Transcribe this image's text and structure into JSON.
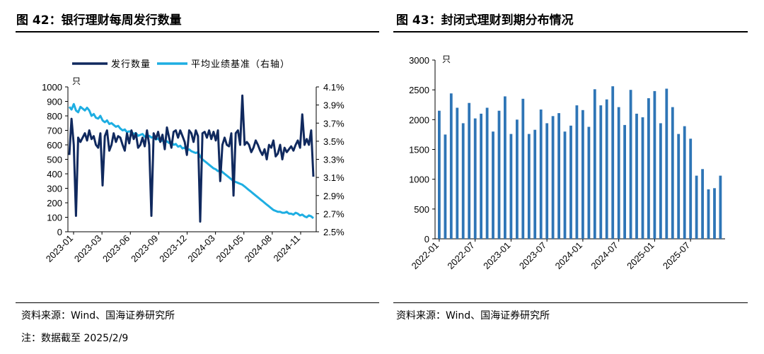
{
  "left": {
    "title": "图 42：银行理财每周发行数量",
    "source": "资料来源：Wind、国海证券研究所",
    "note": "注：数据截至 2025/2/9"
  },
  "right": {
    "title": "图 43：封闭式理财到期分布情况",
    "source": "资料来源：Wind、国海证券研究所"
  },
  "colors": {
    "navy": "#10295e",
    "cyan": "#1eaee2",
    "bar": "#2e75b6"
  },
  "chart_data": [
    {
      "type": "line",
      "title": "银行理财每周发行数量",
      "y_unit": "只",
      "ylim": [
        0,
        1000
      ],
      "yticks": [
        "1000",
        "900",
        "800",
        "700",
        "600",
        "500",
        "400",
        "300",
        "200",
        "100",
        "0"
      ],
      "y2lim": [
        2.5,
        4.1
      ],
      "y2ticks": [
        "4.1%",
        "3.9%",
        "3.7%",
        "3.5%",
        "3.3%",
        "3.1%",
        "2.9%",
        "2.7%",
        "2.5%"
      ],
      "xticks": [
        "2023-01",
        "2023-03",
        "2023-06",
        "2023-09",
        "2023-12",
        "2024-03",
        "2024-05",
        "2024-08",
        "2024-11"
      ],
      "legend": [
        "发行数量",
        "平均业绩基准（右轴）"
      ],
      "series": [
        {
          "name": "发行数量",
          "axis": "left",
          "values": [
            530,
            780,
            600,
            110,
            650,
            620,
            650,
            680,
            630,
            700,
            640,
            660,
            600,
            580,
            680,
            320,
            660,
            700,
            560,
            600,
            680,
            620,
            660,
            650,
            600,
            560,
            680,
            610,
            700,
            640,
            680,
            580,
            600,
            650,
            590,
            700,
            600,
            110,
            680,
            640,
            690,
            620,
            670,
            570,
            720,
            650,
            580,
            690,
            700,
            650,
            700,
            660,
            620,
            530,
            700,
            680,
            620,
            700,
            660,
            70,
            680,
            690,
            650,
            700,
            640,
            690,
            630,
            700,
            350,
            600,
            650,
            600,
            590,
            680,
            250,
            680,
            700,
            600,
            940,
            600,
            620,
            600,
            550,
            580,
            630,
            600,
            560,
            530,
            570,
            500,
            600,
            580,
            630,
            520,
            540,
            600,
            500,
            580,
            550,
            570,
            590,
            560,
            600,
            630,
            580,
            810,
            600,
            640,
            600,
            700,
            380
          ]
        },
        {
          "name": "平均业绩基准（右轴）",
          "axis": "right",
          "values": [
            3.88,
            3.85,
            3.91,
            3.84,
            3.82,
            3.88,
            3.86,
            3.84,
            3.87,
            3.84,
            3.78,
            3.8,
            3.76,
            3.75,
            3.78,
            3.73,
            3.71,
            3.73,
            3.69,
            3.7,
            3.68,
            3.66,
            3.67,
            3.64,
            3.62,
            3.63,
            3.6,
            3.61,
            3.6,
            3.58,
            3.59,
            3.56,
            3.57,
            3.58,
            3.55,
            3.56,
            3.56,
            3.54,
            3.55,
            3.52,
            3.53,
            3.5,
            3.51,
            3.49,
            3.5,
            3.48,
            3.49,
            3.46,
            3.47,
            3.44,
            3.45,
            3.42,
            3.43,
            3.4,
            3.41,
            3.39,
            3.38,
            3.37,
            3.38,
            3.33,
            3.3,
            3.28,
            3.26,
            3.24,
            3.22,
            3.2,
            3.19,
            3.17,
            3.18,
            3.16,
            3.14,
            3.12,
            3.1,
            3.08,
            3.06,
            3.05,
            3.04,
            3.03,
            3.02,
            3.0,
            2.98,
            2.96,
            2.94,
            2.92,
            2.9,
            2.88,
            2.86,
            2.84,
            2.82,
            2.8,
            2.78,
            2.76,
            2.74,
            2.73,
            2.72,
            2.72,
            2.71,
            2.71,
            2.72,
            2.7,
            2.7,
            2.69,
            2.71,
            2.7,
            2.68,
            2.69,
            2.67,
            2.66,
            2.68,
            2.67,
            2.65
          ]
        }
      ]
    },
    {
      "type": "bar",
      "title": "封闭式理财到期分布情况",
      "y_unit": "只",
      "ylim": [
        0,
        3000
      ],
      "yticks": [
        "3000",
        "2500",
        "2000",
        "1500",
        "1000",
        "500",
        "0"
      ],
      "xticks": [
        "2022-01",
        "2022-07",
        "2023-01",
        "2023-07",
        "2024-01",
        "2024-07",
        "2025-01",
        "2025-07"
      ],
      "categories": [
        "2022-01",
        "2022-02",
        "2022-03",
        "2022-04",
        "2022-05",
        "2022-06",
        "2022-07",
        "2022-08",
        "2022-09",
        "2022-10",
        "2022-11",
        "2022-12",
        "2023-01",
        "2023-02",
        "2023-03",
        "2023-04",
        "2023-05",
        "2023-06",
        "2023-07",
        "2023-08",
        "2023-09",
        "2023-10",
        "2023-11",
        "2023-12",
        "2024-01",
        "2024-02",
        "2024-03",
        "2024-04",
        "2024-05",
        "2024-06",
        "2024-07",
        "2024-08",
        "2024-09",
        "2024-10",
        "2024-11",
        "2024-12",
        "2025-01",
        "2025-02",
        "2025-03",
        "2025-04",
        "2025-05",
        "2025-06",
        "2025-07",
        "2025-08",
        "2025-09",
        "2025-10",
        "2025-11",
        "2025-12"
      ],
      "values": [
        2150,
        1750,
        2440,
        2200,
        1940,
        2280,
        2020,
        2100,
        2200,
        1800,
        2150,
        2390,
        1760,
        2000,
        2350,
        1760,
        1830,
        2170,
        1940,
        2060,
        2110,
        1800,
        1900,
        2240,
        2160,
        1880,
        2510,
        2240,
        2340,
        2560,
        2210,
        1910,
        2500,
        2100,
        2040,
        2360,
        2480,
        1940,
        2520,
        2210,
        1760,
        1890,
        1680,
        1060,
        1170,
        830,
        850,
        1060
      ]
    }
  ]
}
